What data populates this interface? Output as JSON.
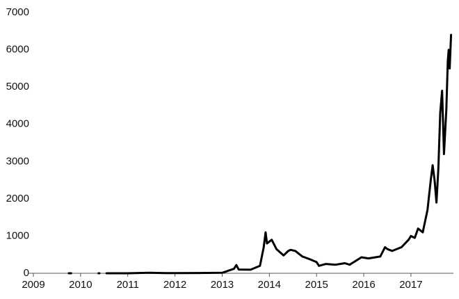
{
  "chart_data": {
    "type": "line",
    "x": [
      2009.75,
      2009.8,
      null,
      2010.38,
      2010.4,
      null,
      2010.55,
      2011.0,
      2011.45,
      2011.8,
      2012.5,
      2013.0,
      2013.25,
      2013.3,
      2013.35,
      2013.6,
      2013.8,
      2013.88,
      2013.92,
      2013.95,
      2014.0,
      2014.05,
      2014.15,
      2014.3,
      2014.4,
      2014.45,
      2014.55,
      2014.7,
      2014.85,
      2015.0,
      2015.05,
      2015.2,
      2015.4,
      2015.6,
      2015.7,
      2015.85,
      2015.95,
      2016.1,
      2016.35,
      2016.45,
      2016.5,
      2016.6,
      2016.8,
      2016.95,
      2017.0,
      2017.08,
      2017.15,
      2017.25,
      2017.35,
      2017.42,
      2017.46,
      2017.5,
      2017.54,
      2017.58,
      2017.62,
      2017.66,
      2017.7,
      2017.75,
      2017.78,
      2017.8,
      2017.82,
      2017.85
    ],
    "series": [
      {
        "color": "#000000",
        "values": [
          0,
          0,
          null,
          0,
          0,
          null,
          0,
          0.3,
          15,
          3,
          7,
          13,
          120,
          220,
          100,
          95,
          200,
          700,
          1100,
          800,
          850,
          900,
          650,
          480,
          600,
          630,
          600,
          450,
          380,
          300,
          200,
          250,
          230,
          270,
          230,
          350,
          430,
          400,
          450,
          700,
          650,
          600,
          700,
          900,
          1000,
          950,
          1200,
          1100,
          1700,
          2500,
          2900,
          2500,
          1900,
          2800,
          4300,
          4900,
          3200,
          4400,
          5700,
          6000,
          5500,
          6400
        ]
      }
    ],
    "xlim": [
      2009,
      2017.9
    ],
    "xticks": [
      2009,
      2010,
      2011,
      2012,
      2013,
      2014,
      2015,
      2016,
      2017
    ],
    "ylim": [
      0,
      7000
    ],
    "yticks": [
      0,
      1000,
      2000,
      3000,
      4000,
      5000,
      6000,
      7000
    ]
  }
}
